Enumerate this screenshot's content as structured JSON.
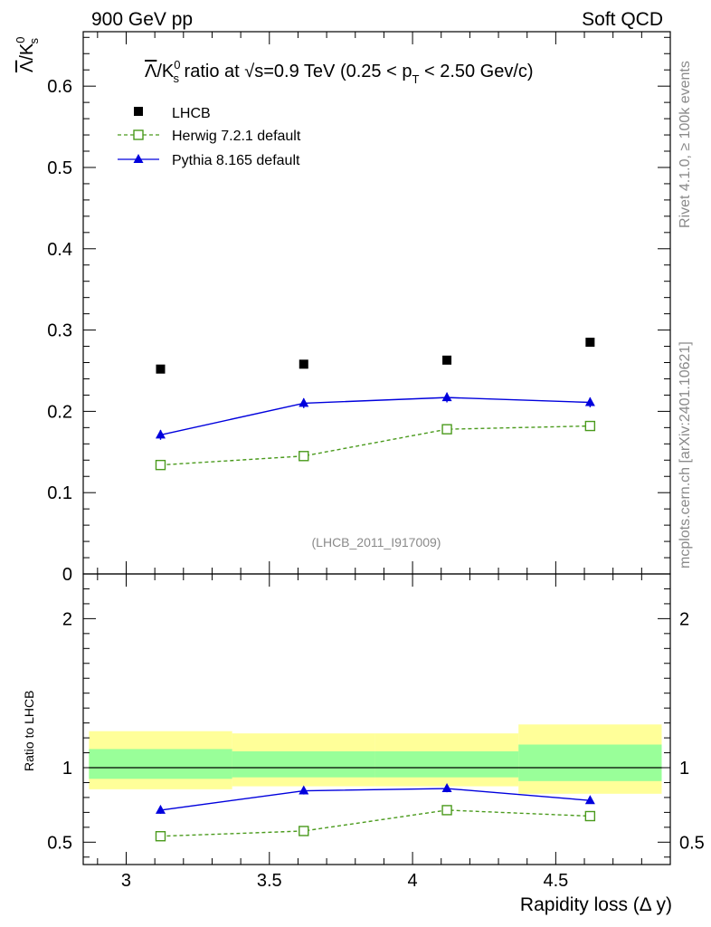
{
  "header": {
    "left": "900 GeV pp",
    "right": "Soft QCD"
  },
  "side": {
    "rivet": "Rivet 4.1.0, ≥ 100k events",
    "mcplots": "mcplots.cern.ch [arXiv:2401.10621]"
  },
  "chart_data": [
    {
      "type": "scatter",
      "panel": "main",
      "title": {
        "lambda_sym": "Λ",
        "kaon": "/K",
        "kaon_sup": "0",
        "kaon_sub": "s",
        "middle": " ratio at ",
        "sqrt": "√",
        "energy": "s=0.9 TeV (0.25 < p",
        "pt_sub": "T",
        "range_end": " < 2.50 Gev/c)"
      },
      "ylabel": {
        "lambda_sym": "Λ",
        "kaon": "/K",
        "kaon_sup": "0",
        "kaon_sub": "s"
      },
      "xlim": [
        2.85,
        4.9
      ],
      "ylim": [
        0,
        0.667
      ],
      "yticks": [
        0,
        0.1,
        0.2,
        0.3,
        0.4,
        0.5,
        0.6
      ],
      "ytick_labels": [
        "0",
        "0.1",
        "0.2",
        "0.3",
        "0.4",
        "0.5",
        "0.6"
      ],
      "legend_position": "top-left",
      "annotation": "(LHCB_2011_I917009)",
      "series": [
        {
          "name": "LHCB",
          "marker": "filled-square",
          "color": "#000000",
          "x": [
            3.12,
            3.62,
            4.12,
            4.62
          ],
          "y": [
            0.252,
            0.258,
            0.263,
            0.285
          ]
        },
        {
          "name": "Herwig 7.2.1 default",
          "marker": "open-square",
          "line": "dashed",
          "color": "#4a9a1c",
          "x": [
            3.12,
            3.62,
            4.12,
            4.62
          ],
          "y": [
            0.134,
            0.145,
            0.178,
            0.182
          ],
          "err": [
            0.003,
            0.003,
            0.004,
            0.004
          ]
        },
        {
          "name": "Pythia 8.165 default",
          "marker": "filled-triangle",
          "line": "solid",
          "color": "#0000dd",
          "x": [
            3.12,
            3.62,
            4.12,
            4.62
          ],
          "y": [
            0.171,
            0.21,
            0.217,
            0.211
          ],
          "err": [
            0.006,
            0.006,
            0.006,
            0.006
          ]
        }
      ]
    },
    {
      "type": "scatter",
      "panel": "ratio",
      "ylabel": "Ratio to LHCB",
      "xlabel": "Rapidity loss (Δ y)",
      "xlim": [
        2.85,
        4.9
      ],
      "ylim": [
        0.35,
        2.3
      ],
      "yticks": [
        0.5,
        1,
        2
      ],
      "ytick_labels": [
        "0.5",
        "1",
        "2"
      ],
      "xticks": [
        3,
        3.5,
        4,
        4.5
      ],
      "xtick_labels": [
        "3",
        "3.5",
        "4",
        "4.5"
      ],
      "reference": 1,
      "bands": {
        "bin_edges": [
          2.87,
          3.37,
          3.87,
          4.37,
          4.87
        ],
        "outer_low": [
          0.855,
          0.875,
          0.875,
          0.825
        ],
        "outer_high": [
          1.245,
          1.23,
          1.23,
          1.29
        ],
        "inner_low": [
          0.925,
          0.935,
          0.935,
          0.91
        ],
        "inner_high": [
          1.125,
          1.11,
          1.11,
          1.155
        ],
        "outer_color": "#ffff99",
        "inner_color": "#99ff99"
      },
      "series": [
        {
          "name": "Herwig 7.2.1 default",
          "marker": "open-square",
          "line": "dashed",
          "color": "#4a9a1c",
          "x": [
            3.12,
            3.62,
            4.12,
            4.62
          ],
          "y": [
            0.54,
            0.575,
            0.715,
            0.675
          ],
          "err": [
            0.012,
            0.012,
            0.014,
            0.014
          ]
        },
        {
          "name": "Pythia 8.165 default",
          "marker": "filled-triangle",
          "line": "solid",
          "color": "#0000dd",
          "x": [
            3.12,
            3.62,
            4.12,
            4.62
          ],
          "y": [
            0.715,
            0.845,
            0.86,
            0.78
          ],
          "err": [
            0.025,
            0.025,
            0.025,
            0.02
          ]
        }
      ]
    }
  ]
}
